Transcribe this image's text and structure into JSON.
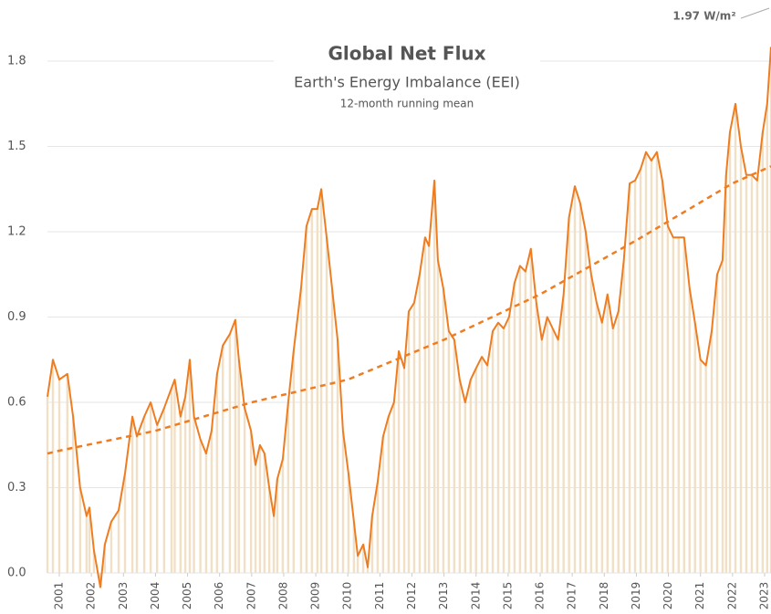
{
  "chart_data": {
    "type": "line",
    "title": "Global Net Flux",
    "subtitle": "Earth's Energy Imbalance (EEI)",
    "note": "12-month running mean",
    "annotation": "1.97 W/m²",
    "xlim": [
      2000.63,
      2023.2
    ],
    "xticks": [
      2001,
      2002,
      2003,
      2004,
      2005,
      2006,
      2007,
      2008,
      2009,
      2010,
      2011,
      2012,
      2013,
      2014,
      2015,
      2016,
      2017,
      2018,
      2019,
      2020,
      2021,
      2022,
      2023
    ],
    "ylim": [
      0,
      1.8
    ],
    "yticks": [
      {
        "value": 0,
        "label": "0.0"
      },
      0.3,
      0.6,
      0.9,
      1.2,
      1.5,
      1.8
    ],
    "grid": true,
    "series": [
      {
        "color": "#ee7d22",
        "bars": true,
        "bar_color": "#f1dfc6",
        "x": [
          2000.63,
          2000.8,
          2001.0,
          2001.25,
          2001.43,
          2001.65,
          2001.85,
          2001.94,
          2002.08,
          2002.28,
          2002.42,
          2002.62,
          2002.85,
          2003.05,
          2003.28,
          2003.42,
          2003.65,
          2003.85,
          2004.05,
          2004.27,
          2004.5,
          2004.6,
          2004.78,
          2004.93,
          2005.07,
          2005.2,
          2005.4,
          2005.58,
          2005.75,
          2005.92,
          2006.1,
          2006.32,
          2006.49,
          2006.6,
          2006.78,
          2006.98,
          2007.12,
          2007.26,
          2007.4,
          2007.55,
          2007.69,
          2007.8,
          2007.97,
          2008.14,
          2008.31,
          2008.54,
          2008.71,
          2008.88,
          2009.05,
          2009.17,
          2009.34,
          2009.51,
          2009.68,
          2009.85,
          2010.02,
          2010.19,
          2010.31,
          2010.48,
          2010.62,
          2010.76,
          2010.93,
          2011.1,
          2011.27,
          2011.44,
          2011.59,
          2011.76,
          2011.9,
          2012.07,
          2012.24,
          2012.41,
          2012.53,
          2012.7,
          2012.81,
          2012.98,
          2013.15,
          2013.32,
          2013.49,
          2013.66,
          2013.83,
          2014.0,
          2014.18,
          2014.35,
          2014.52,
          2014.69,
          2014.86,
          2015.03,
          2015.2,
          2015.37,
          2015.54,
          2015.71,
          2015.88,
          2016.05,
          2016.22,
          2016.39,
          2016.56,
          2016.73,
          2016.9,
          2017.08,
          2017.25,
          2017.42,
          2017.59,
          2017.76,
          2017.93,
          2018.1,
          2018.27,
          2018.44,
          2018.61,
          2018.79,
          2018.96,
          2019.13,
          2019.3,
          2019.47,
          2019.64,
          2019.81,
          2019.98,
          2020.15,
          2020.32,
          2020.49,
          2020.66,
          2020.83,
          2021.0,
          2021.17,
          2021.35,
          2021.52,
          2021.69,
          2021.8,
          2021.92,
          2022.09,
          2022.26,
          2022.43,
          2022.6,
          2022.77,
          2022.94,
          2023.08,
          2023.2
        ],
        "values": [
          0.62,
          0.75,
          0.68,
          0.7,
          0.55,
          0.3,
          0.2,
          0.23,
          0.08,
          -0.05,
          0.1,
          0.18,
          0.22,
          0.35,
          0.55,
          0.48,
          0.55,
          0.6,
          0.52,
          0.58,
          0.65,
          0.68,
          0.55,
          0.62,
          0.75,
          0.55,
          0.47,
          0.42,
          0.5,
          0.7,
          0.8,
          0.84,
          0.89,
          0.75,
          0.58,
          0.5,
          0.38,
          0.45,
          0.42,
          0.3,
          0.2,
          0.33,
          0.4,
          0.6,
          0.78,
          1.0,
          1.22,
          1.28,
          1.28,
          1.35,
          1.18,
          1.0,
          0.82,
          0.5,
          0.35,
          0.18,
          0.06,
          0.1,
          0.02,
          0.2,
          0.32,
          0.48,
          0.55,
          0.6,
          0.78,
          0.72,
          0.92,
          0.95,
          1.05,
          1.18,
          1.15,
          1.38,
          1.1,
          1.0,
          0.85,
          0.82,
          0.68,
          0.6,
          0.68,
          0.72,
          0.76,
          0.73,
          0.85,
          0.88,
          0.86,
          0.9,
          1.02,
          1.08,
          1.06,
          1.14,
          0.95,
          0.82,
          0.9,
          0.86,
          0.82,
          0.98,
          1.25,
          1.36,
          1.3,
          1.2,
          1.05,
          0.95,
          0.88,
          0.98,
          0.86,
          0.92,
          1.1,
          1.37,
          1.38,
          1.42,
          1.48,
          1.45,
          1.48,
          1.38,
          1.22,
          1.18,
          1.18,
          1.18,
          1.0,
          0.88,
          0.75,
          0.73,
          0.85,
          1.05,
          1.1,
          1.4,
          1.55,
          1.65,
          1.5,
          1.4,
          1.4,
          1.38,
          1.55,
          1.65,
          1.85
        ]
      },
      {
        "color": "#ee7d22",
        "dashed": true,
        "x": [
          2000.63,
          2001,
          2004,
          2007,
          2010,
          2013,
          2016,
          2019,
          2022,
          2023.2
        ],
        "values": [
          0.42,
          0.43,
          0.5,
          0.6,
          0.68,
          0.82,
          0.98,
          1.17,
          1.37,
          1.43
        ]
      }
    ]
  }
}
